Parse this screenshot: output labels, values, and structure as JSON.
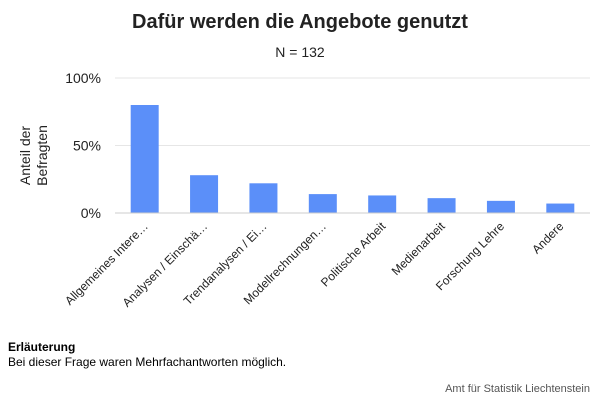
{
  "chart_data": {
    "type": "bar",
    "title": "Dafür werden die Angebote genutzt",
    "subtitle": "N = 132",
    "ylabel": "Anteil der Befragten",
    "ylabel_lines": [
      "Anteil der",
      "Befragten"
    ],
    "ylim": [
      0,
      100
    ],
    "yticks": [
      0,
      50,
      100
    ],
    "ytick_labels": [
      "0%",
      "50%",
      "100%"
    ],
    "grid": true,
    "bar_color": "#5b8ff9",
    "categories": [
      "Allgemeines Intere…",
      "Analysen / Einschä…",
      "Trendanalysen / Ei…",
      "Modellrechnungen…",
      "Politische Arbeit",
      "Medienarbeit",
      "Forschung Lehre",
      "Andere"
    ],
    "values": [
      80,
      28,
      22,
      14,
      13,
      11,
      9,
      7
    ]
  },
  "note": {
    "title": "Erläuterung",
    "text": "Bei dieser Frage waren Mehrfachantworten möglich."
  },
  "credits": "Amt für Statistik Liechtenstein"
}
